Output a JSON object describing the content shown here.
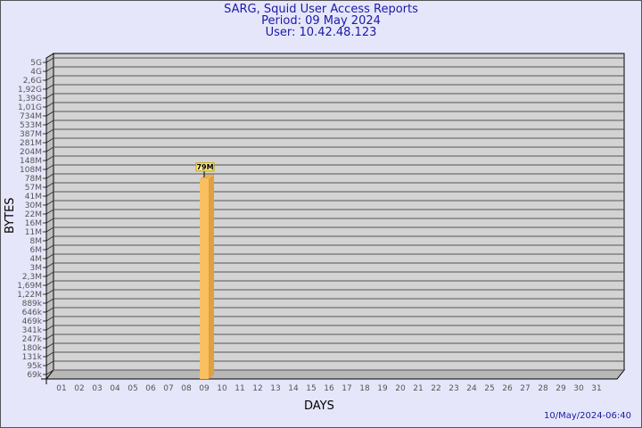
{
  "header": {
    "title": "SARG, Squid User Access Reports",
    "period": "Period: 09 May 2024",
    "user": "User: 10.42.48.123"
  },
  "footer": {
    "timestamp": "10/May/2024-06:40"
  },
  "colors": {
    "background": "#e6e6fa",
    "plot": "#d3d3d3",
    "bar": "#f8c060",
    "bar_side": "#e0a040",
    "title": "#1a1aa6"
  },
  "chart_data": {
    "type": "bar",
    "xlabel": "DAYS",
    "ylabel": "BYTES",
    "y_scale": "log",
    "grid": true,
    "categories": [
      "01",
      "02",
      "03",
      "04",
      "05",
      "06",
      "07",
      "08",
      "09",
      "10",
      "11",
      "12",
      "13",
      "14",
      "15",
      "16",
      "17",
      "18",
      "19",
      "20",
      "21",
      "22",
      "23",
      "24",
      "25",
      "26",
      "27",
      "28",
      "29",
      "30",
      "31"
    ],
    "y_ticks": [
      {
        "label": "69k",
        "value": 69000
      },
      {
        "label": "95k",
        "value": 95000
      },
      {
        "label": "131k",
        "value": 131000
      },
      {
        "label": "180k",
        "value": 180000
      },
      {
        "label": "247k",
        "value": 247000
      },
      {
        "label": "341k",
        "value": 341000
      },
      {
        "label": "469k",
        "value": 469000
      },
      {
        "label": "646k",
        "value": 646000
      },
      {
        "label": "889k",
        "value": 889000
      },
      {
        "label": "1,22M",
        "value": 1220000
      },
      {
        "label": "1,69M",
        "value": 1690000
      },
      {
        "label": "2,3M",
        "value": 2300000
      },
      {
        "label": "3M",
        "value": 3000000
      },
      {
        "label": "4M",
        "value": 4000000
      },
      {
        "label": "6M",
        "value": 6000000
      },
      {
        "label": "8M",
        "value": 8000000
      },
      {
        "label": "11M",
        "value": 11000000
      },
      {
        "label": "16M",
        "value": 16000000
      },
      {
        "label": "22M",
        "value": 22000000
      },
      {
        "label": "30M",
        "value": 30000000
      },
      {
        "label": "41M",
        "value": 41000000
      },
      {
        "label": "57M",
        "value": 57000000
      },
      {
        "label": "78M",
        "value": 78000000
      },
      {
        "label": "108M",
        "value": 108000000
      },
      {
        "label": "148M",
        "value": 148000000
      },
      {
        "label": "204M",
        "value": 204000000
      },
      {
        "label": "281M",
        "value": 281000000
      },
      {
        "label": "387M",
        "value": 387000000
      },
      {
        "label": "533M",
        "value": 533000000
      },
      {
        "label": "734M",
        "value": 734000000
      },
      {
        "label": "1,01G",
        "value": 1010000000
      },
      {
        "label": "1,39G",
        "value": 1390000000
      },
      {
        "label": "1,92G",
        "value": 1920000000
      },
      {
        "label": "2,6G",
        "value": 2600000000
      },
      {
        "label": "4G",
        "value": 4000000000
      },
      {
        "label": "5G",
        "value": 5000000000
      }
    ],
    "series": [
      {
        "values": [
          null,
          null,
          null,
          null,
          null,
          null,
          null,
          null,
          79000000,
          null,
          null,
          null,
          null,
          null,
          null,
          null,
          null,
          null,
          null,
          null,
          null,
          null,
          null,
          null,
          null,
          null,
          null,
          null,
          null,
          null,
          null
        ],
        "labels": {
          "09": "79M"
        }
      }
    ]
  }
}
